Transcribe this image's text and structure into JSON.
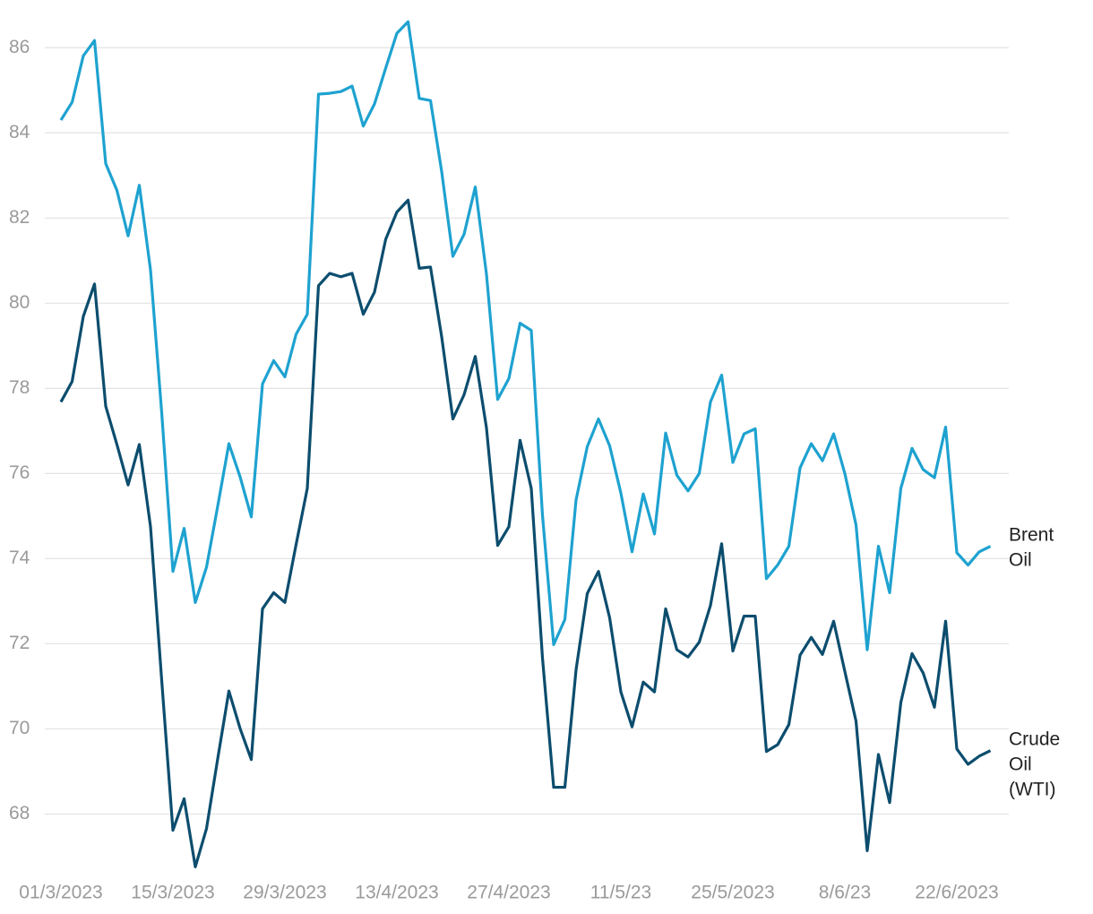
{
  "chart_data": {
    "type": "line",
    "categories": [
      "01/3/2023",
      null,
      null,
      null,
      null,
      null,
      null,
      null,
      null,
      null,
      "15/3/2023",
      null,
      null,
      null,
      null,
      null,
      null,
      null,
      null,
      null,
      "29/3/2023",
      null,
      null,
      null,
      null,
      null,
      null,
      null,
      null,
      null,
      "13/4/2023",
      null,
      null,
      null,
      null,
      null,
      null,
      null,
      null,
      null,
      "27/4/2023",
      null,
      null,
      null,
      null,
      null,
      null,
      null,
      null,
      null,
      "11/5/23",
      null,
      null,
      null,
      null,
      null,
      null,
      null,
      null,
      null,
      "25/5/2023",
      null,
      null,
      null,
      null,
      null,
      null,
      null,
      null,
      null,
      "8/6/23",
      null,
      null,
      null,
      null,
      null,
      null,
      null,
      null,
      null,
      "22/6/2023",
      null,
      null,
      null
    ],
    "series": [
      {
        "name": "Brent Oil",
        "color": "#1ea2d0",
        "values": [
          84.3,
          84.72,
          85.81,
          86.17,
          83.28,
          82.65,
          81.58,
          82.77,
          80.78,
          77.43,
          73.7,
          74.71,
          72.97,
          73.8,
          75.23,
          76.7,
          75.92,
          74.98,
          78.1,
          78.65,
          78.27,
          79.27,
          79.74,
          84.91,
          84.93,
          84.97,
          85.1,
          84.16,
          84.68,
          85.52,
          86.34,
          86.61,
          84.81,
          84.76,
          83.09,
          81.1,
          81.62,
          82.73,
          80.68,
          77.74,
          78.23,
          79.53,
          79.36,
          75.02,
          71.98,
          72.57,
          75.38,
          76.63,
          77.28,
          76.65,
          75.54,
          74.16,
          75.52,
          74.58,
          76.95,
          75.96,
          75.59,
          76.0,
          77.68,
          78.31,
          76.26,
          76.93,
          77.05,
          73.53,
          73.85,
          74.29,
          76.13,
          76.7,
          76.3,
          76.93,
          76.0,
          74.79,
          71.86,
          74.29,
          73.2,
          75.65,
          76.59,
          76.09,
          75.9,
          77.09,
          74.14,
          73.85,
          74.16,
          74.29
        ]
      },
      {
        "name": "Crude Oil (WTI)",
        "color": "#0c4d6e",
        "values": [
          77.68,
          78.16,
          79.69,
          80.45,
          77.58,
          76.68,
          75.73,
          76.68,
          74.75,
          71.14,
          67.62,
          68.36,
          66.76,
          67.66,
          69.3,
          70.89,
          70.01,
          69.28,
          72.82,
          73.2,
          72.97,
          74.33,
          75.65,
          80.41,
          80.7,
          80.62,
          80.7,
          79.74,
          80.26,
          81.5,
          82.14,
          82.42,
          80.82,
          80.85,
          79.21,
          77.28,
          77.85,
          78.75,
          77.07,
          74.31,
          74.75,
          76.78,
          75.65,
          71.67,
          68.63,
          68.63,
          71.39,
          73.18,
          73.7,
          72.61,
          70.87,
          70.05,
          71.1,
          70.87,
          72.82,
          71.86,
          71.69,
          72.04,
          72.9,
          74.35,
          71.83,
          72.65,
          72.65,
          69.47,
          69.63,
          70.1,
          71.73,
          72.15,
          71.75,
          72.53,
          71.35,
          70.18,
          67.14,
          69.4,
          68.27,
          70.62,
          71.77,
          71.31,
          70.51,
          72.53,
          69.53,
          69.17,
          69.36,
          69.49
        ]
      }
    ],
    "ylim": [
      66.6,
      86.7
    ],
    "yticks": [
      68,
      70,
      72,
      74,
      76,
      78,
      80,
      82,
      84,
      86
    ],
    "grid": true
  }
}
